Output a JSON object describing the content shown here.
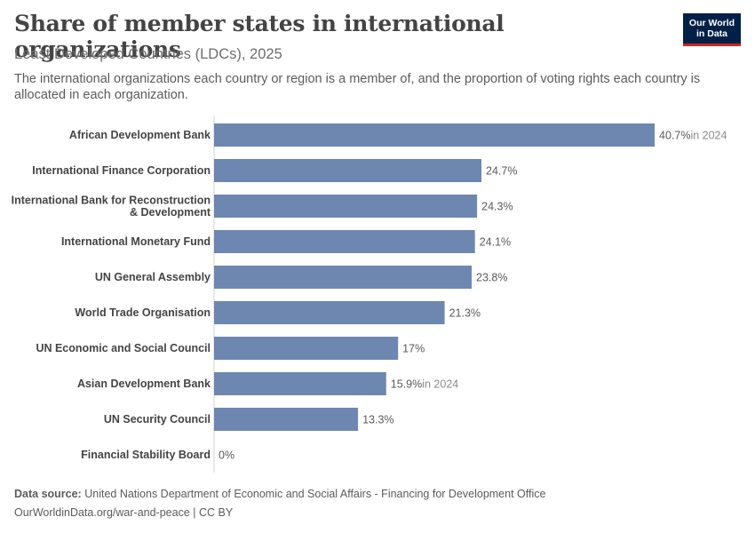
{
  "header": {
    "title": "Share of member states in international organizations",
    "subtitle": "Least Developed Countries (LDCs), 2025",
    "note": "The international organizations each country or region is a member of, and the proportion of voting rights each country is allocated in each organization."
  },
  "logo": {
    "line1": "Our World",
    "line2": "in Data",
    "bg_color": "#002147",
    "accent_color": "#ce261e"
  },
  "footer": {
    "source_label": "Data source:",
    "source_text": "United Nations Department of Economic and Social Affairs - Financing for Development Office",
    "url_line": "OurWorldinData.org/war-and-peace | CC BY"
  },
  "chart_data": {
    "type": "bar",
    "orientation": "horizontal",
    "bar_color": "#6d87b0",
    "value_suffix": "%",
    "xlim": [
      0,
      40.7
    ],
    "categories": [
      {
        "name": "African Development Bank",
        "value": 40.7,
        "label": "40.7%",
        "year_note": "in 2024"
      },
      {
        "name": "International Finance Corporation",
        "value": 24.7,
        "label": "24.7%",
        "year_note": ""
      },
      {
        "name": "International Bank for Reconstruction & Development",
        "lines": [
          "International Bank for Reconstruction",
          "& Development"
        ],
        "value": 24.3,
        "label": "24.3%",
        "year_note": ""
      },
      {
        "name": "International Monetary Fund",
        "value": 24.1,
        "label": "24.1%",
        "year_note": ""
      },
      {
        "name": "UN General Assembly",
        "value": 23.8,
        "label": "23.8%",
        "year_note": ""
      },
      {
        "name": "World Trade Organisation",
        "value": 21.3,
        "label": "21.3%",
        "year_note": ""
      },
      {
        "name": "UN Economic and Social Council",
        "value": 17,
        "label": "17%",
        "year_note": ""
      },
      {
        "name": "Asian Development Bank",
        "value": 15.9,
        "label": "15.9%",
        "year_note": "in 2024"
      },
      {
        "name": "UN Security Council",
        "value": 13.3,
        "label": "13.3%",
        "year_note": ""
      },
      {
        "name": "Financial Stability Board",
        "value": 0,
        "label": "0%",
        "year_note": ""
      }
    ]
  }
}
